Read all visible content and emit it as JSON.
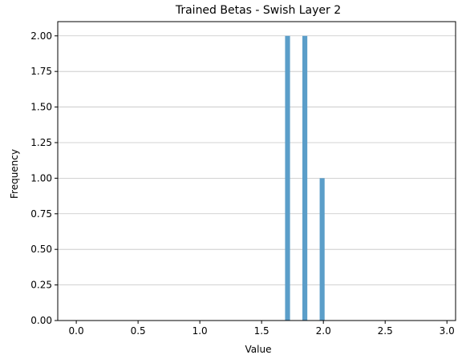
{
  "chart_data": {
    "type": "bar",
    "title": "Trained Betas - Swish Layer 2",
    "xlabel": "Value",
    "ylabel": "Frequency",
    "xlim": [
      -0.15,
      3.07
    ],
    "ylim": [
      0,
      2.1
    ],
    "xticks": [
      0.0,
      0.5,
      1.0,
      1.5,
      2.0,
      2.5,
      3.0
    ],
    "xtick_labels": [
      "0.0",
      "0.5",
      "1.0",
      "1.5",
      "2.0",
      "2.5",
      "3.0"
    ],
    "yticks": [
      0.0,
      0.25,
      0.5,
      0.75,
      1.0,
      1.25,
      1.5,
      1.75,
      2.0
    ],
    "ytick_labels": [
      "0.00",
      "0.25",
      "0.50",
      "0.75",
      "1.00",
      "1.25",
      "1.50",
      "1.75",
      "2.00"
    ],
    "grid": "y",
    "bar_color": "#5b9ec9",
    "bins": [
      {
        "x0": 1.69,
        "x1": 1.73,
        "count": 2
      },
      {
        "x0": 1.83,
        "x1": 1.87,
        "count": 2
      },
      {
        "x0": 1.97,
        "x1": 2.01,
        "count": 1
      }
    ]
  }
}
